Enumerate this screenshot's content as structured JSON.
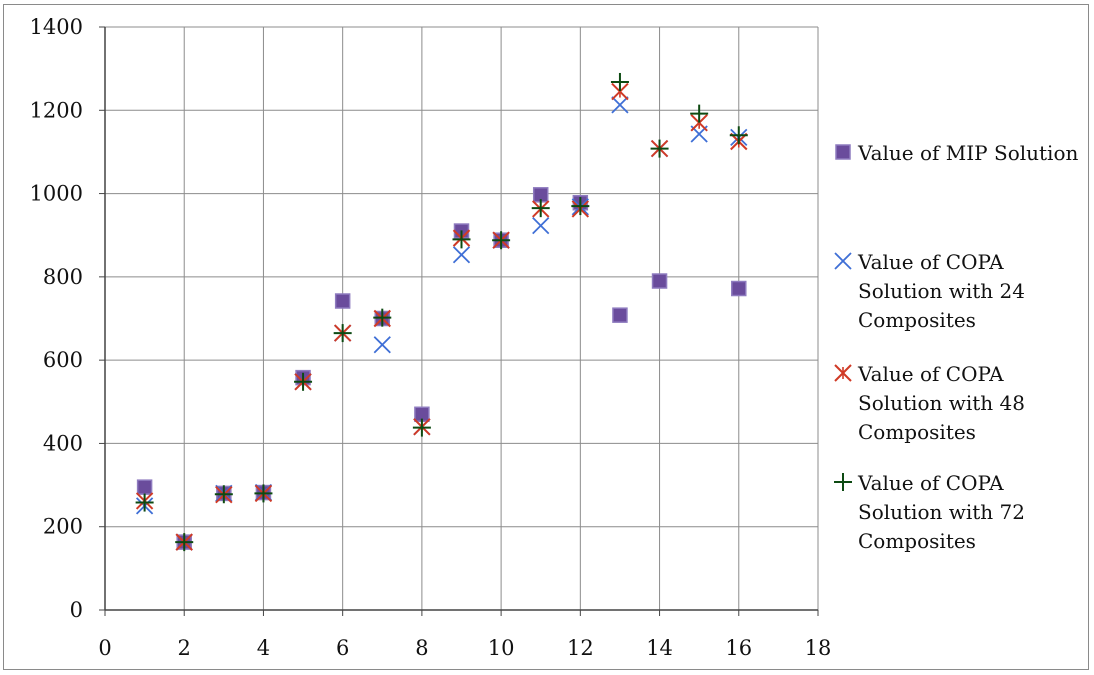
{
  "chart_data": {
    "type": "scatter",
    "title": "",
    "xlabel": "",
    "ylabel": "",
    "xlim": [
      0,
      18
    ],
    "ylim": [
      0,
      1400
    ],
    "x_ticks": [
      0,
      2,
      4,
      6,
      8,
      10,
      12,
      14,
      16,
      18
    ],
    "y_ticks": [
      0,
      200,
      400,
      600,
      800,
      1000,
      1200,
      1400
    ],
    "grid": true,
    "legend_position": "right",
    "series": [
      {
        "name": "Value of MIP Solution",
        "marker": "square",
        "color": "#6a4c9c",
        "points": [
          [
            1,
            295
          ],
          [
            2,
            163
          ],
          [
            3,
            280
          ],
          [
            4,
            282
          ],
          [
            5,
            558
          ],
          [
            6,
            742
          ],
          [
            7,
            700
          ],
          [
            8,
            470
          ],
          [
            9,
            910
          ],
          [
            10,
            888
          ],
          [
            11,
            997
          ],
          [
            12,
            978
          ],
          [
            13,
            708
          ],
          [
            14,
            790
          ],
          [
            16,
            772
          ]
        ]
      },
      {
        "name": "Value of COPA Solution with 24 Composites",
        "marker": "x",
        "color": "#3f6fd6",
        "points": [
          [
            1,
            250
          ],
          [
            2,
            163
          ],
          [
            3,
            280
          ],
          [
            4,
            282
          ],
          [
            5,
            548
          ],
          [
            6,
            665
          ],
          [
            7,
            637
          ],
          [
            8,
            440
          ],
          [
            9,
            853
          ],
          [
            10,
            888
          ],
          [
            11,
            923
          ],
          [
            12,
            968
          ],
          [
            13,
            1213
          ],
          [
            14,
            1108
          ],
          [
            15,
            1143
          ],
          [
            16,
            1135
          ]
        ]
      },
      {
        "name": "Value of COPA Solution with 48 Composites",
        "marker": "asterisk",
        "color": "#d03a26",
        "points": [
          [
            1,
            262
          ],
          [
            2,
            163
          ],
          [
            3,
            277
          ],
          [
            4,
            280
          ],
          [
            5,
            548
          ],
          [
            6,
            665
          ],
          [
            7,
            700
          ],
          [
            8,
            440
          ],
          [
            9,
            893
          ],
          [
            10,
            888
          ],
          [
            11,
            963
          ],
          [
            12,
            963
          ],
          [
            13,
            1245
          ],
          [
            14,
            1108
          ],
          [
            15,
            1170
          ],
          [
            16,
            1125
          ]
        ]
      },
      {
        "name": "Value of COPA Solution with 72 Composites",
        "marker": "plus",
        "color": "#0d4a12",
        "points": [
          [
            1,
            258
          ],
          [
            2,
            163
          ],
          [
            3,
            278
          ],
          [
            4,
            280
          ],
          [
            5,
            548
          ],
          [
            6,
            665
          ],
          [
            7,
            702
          ],
          [
            8,
            438
          ],
          [
            9,
            890
          ],
          [
            10,
            888
          ],
          [
            11,
            965
          ],
          [
            12,
            970
          ],
          [
            13,
            1268
          ],
          [
            14,
            1108
          ],
          [
            15,
            1192
          ],
          [
            16,
            1140
          ]
        ]
      }
    ],
    "legend": [
      {
        "lines": [
          "Value of MIP Solution"
        ]
      },
      {
        "lines": [
          "Value of COPA",
          "Solution with 24",
          "Composites"
        ]
      },
      {
        "lines": [
          "Value of COPA",
          "Solution with 48",
          "Composites"
        ]
      },
      {
        "lines": [
          "Value of COPA",
          "Solution with 72",
          "Composites"
        ]
      }
    ]
  }
}
